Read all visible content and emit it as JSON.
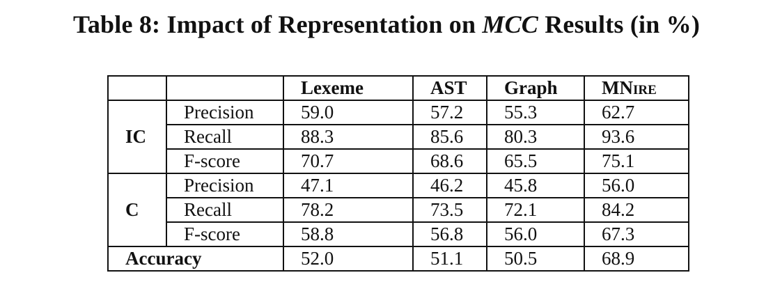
{
  "caption": {
    "prefix": "Table 8: Impact of Representation on ",
    "emphasis": "MCC",
    "suffix": " Results (in %)"
  },
  "table": {
    "columns": [
      "Lexeme",
      "AST",
      "Graph",
      "MNire"
    ],
    "groups": [
      {
        "label": "IC",
        "rows": [
          {
            "metric": "Precision",
            "values": [
              "59.0",
              "57.2",
              "55.3",
              "62.7"
            ]
          },
          {
            "metric": "Recall",
            "values": [
              "88.3",
              "85.6",
              "80.3",
              "93.6"
            ]
          },
          {
            "metric": "F-score",
            "values": [
              "70.7",
              "68.6",
              "65.5",
              "75.1"
            ]
          }
        ]
      },
      {
        "label": "C",
        "rows": [
          {
            "metric": "Precision",
            "values": [
              "47.1",
              "46.2",
              "45.8",
              "56.0"
            ]
          },
          {
            "metric": "Recall",
            "values": [
              "78.2",
              "73.5",
              "72.1",
              "84.2"
            ]
          },
          {
            "metric": "F-score",
            "values": [
              "58.8",
              "56.8",
              "56.0",
              "67.3"
            ]
          }
        ]
      }
    ],
    "accuracy": {
      "label": "Accuracy",
      "values": [
        "52.0",
        "51.1",
        "50.5",
        "68.9"
      ]
    }
  }
}
